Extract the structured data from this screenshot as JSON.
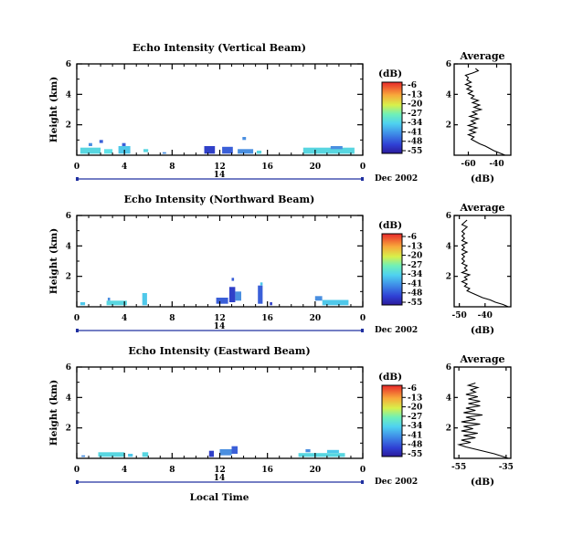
{
  "chart_data": [
    {
      "type": "heatmap",
      "title": "Echo Intensity (Vertical Beam)",
      "ylabel": "Height (km)",
      "xticks": [
        "0",
        "4",
        "8",
        "12",
        "16",
        "20",
        "0"
      ],
      "yticks": [
        "2",
        "4",
        "6"
      ],
      "day_label": "14",
      "date_label": "Dec 2002",
      "colorbar": {
        "unit": "(dB)",
        "ticks": [
          "-6",
          "-13",
          "-20",
          "-27",
          "-34",
          "-41",
          "-48",
          "-55"
        ]
      },
      "xlim": [
        0,
        24
      ],
      "ylim": [
        0,
        6
      ],
      "patches": [
        {
          "x0": 0.3,
          "x1": 2.0,
          "y0": 0.1,
          "y1": 0.5,
          "c": "#58d6e0"
        },
        {
          "x0": 1.0,
          "x1": 1.3,
          "y0": 0.6,
          "y1": 0.8,
          "c": "#4a8fe0"
        },
        {
          "x0": 1.9,
          "x1": 2.2,
          "y0": 0.8,
          "y1": 1.0,
          "c": "#3a5fd8"
        },
        {
          "x0": 2.3,
          "x1": 3.0,
          "y0": 0.1,
          "y1": 0.4,
          "c": "#60e2e8"
        },
        {
          "x0": 3.5,
          "x1": 4.5,
          "y0": 0.1,
          "y1": 0.6,
          "c": "#4fc8ea"
        },
        {
          "x0": 3.8,
          "x1": 4.1,
          "y0": 0.6,
          "y1": 0.8,
          "c": "#3a5fd8"
        },
        {
          "x0": 5.6,
          "x1": 6.0,
          "y0": 0.2,
          "y1": 0.4,
          "c": "#58d6e0"
        },
        {
          "x0": 7.2,
          "x1": 7.5,
          "y0": 0.1,
          "y1": 0.2,
          "c": "#4a8fe0"
        },
        {
          "x0": 10.7,
          "x1": 11.6,
          "y0": 0.1,
          "y1": 0.6,
          "c": "#3040c8"
        },
        {
          "x0": 12.2,
          "x1": 13.1,
          "y0": 0.1,
          "y1": 0.55,
          "c": "#3a5fd8"
        },
        {
          "x0": 13.9,
          "x1": 14.2,
          "y0": 1.0,
          "y1": 1.2,
          "c": "#4a8fe0"
        },
        {
          "x0": 13.5,
          "x1": 14.8,
          "y0": 0.1,
          "y1": 0.4,
          "c": "#4a8fe0"
        },
        {
          "x0": 15.1,
          "x1": 15.5,
          "y0": 0.1,
          "y1": 0.3,
          "c": "#58d6e0"
        },
        {
          "x0": 19.0,
          "x1": 23.3,
          "y0": 0.1,
          "y1": 0.5,
          "c": "#58d6e0"
        },
        {
          "x0": 21.3,
          "x1": 22.3,
          "y0": 0.4,
          "y1": 0.6,
          "c": "#4a8fe0"
        }
      ]
    },
    {
      "type": "heatmap",
      "title": "Echo Intensity (Northward Beam)",
      "ylabel": "Height (km)",
      "xticks": [
        "0",
        "4",
        "8",
        "12",
        "16",
        "20",
        "0"
      ],
      "yticks": [
        "2",
        "4",
        "6"
      ],
      "day_label": "14",
      "date_label": "Dec 2002",
      "colorbar": {
        "unit": "(dB)",
        "ticks": [
          "-6",
          "-13",
          "-20",
          "-27",
          "-34",
          "-41",
          "-48",
          "-55"
        ]
      },
      "xlim": [
        0,
        24
      ],
      "ylim": [
        0,
        6
      ],
      "patches": [
        {
          "x0": 0.3,
          "x1": 0.7,
          "y0": 0.1,
          "y1": 0.3,
          "c": "#4fc8ea"
        },
        {
          "x0": 2.5,
          "x1": 4.2,
          "y0": 0.1,
          "y1": 0.4,
          "c": "#58d6e0"
        },
        {
          "x0": 2.6,
          "x1": 2.8,
          "y0": 0.4,
          "y1": 0.6,
          "c": "#4a8fe0"
        },
        {
          "x0": 5.5,
          "x1": 5.9,
          "y0": 0.1,
          "y1": 0.9,
          "c": "#4fc8ea"
        },
        {
          "x0": 11.7,
          "x1": 12.7,
          "y0": 0.2,
          "y1": 0.6,
          "c": "#3a5fd8"
        },
        {
          "x0": 12.8,
          "x1": 13.3,
          "y0": 0.3,
          "y1": 1.3,
          "c": "#3040c8"
        },
        {
          "x0": 13.3,
          "x1": 13.8,
          "y0": 0.4,
          "y1": 1.0,
          "c": "#4a8fe0"
        },
        {
          "x0": 13.0,
          "x1": 13.2,
          "y0": 1.7,
          "y1": 1.9,
          "c": "#3a5fd8"
        },
        {
          "x0": 15.2,
          "x1": 15.6,
          "y0": 0.2,
          "y1": 1.4,
          "c": "#3a5fd8"
        },
        {
          "x0": 15.4,
          "x1": 15.6,
          "y0": 1.4,
          "y1": 1.6,
          "c": "#4fc8ea"
        },
        {
          "x0": 16.2,
          "x1": 16.4,
          "y0": 0.1,
          "y1": 0.3,
          "c": "#3040c8"
        },
        {
          "x0": 20.0,
          "x1": 20.6,
          "y0": 0.4,
          "y1": 0.7,
          "c": "#4a8fe0"
        },
        {
          "x0": 20.6,
          "x1": 22.8,
          "y0": 0.1,
          "y1": 0.45,
          "c": "#4fc8ea"
        }
      ]
    },
    {
      "type": "heatmap",
      "title": "Echo Intensity (Eastward Beam)",
      "ylabel": "Height (km)",
      "xlabel": "Local Time",
      "xticks": [
        "0",
        "4",
        "8",
        "12",
        "16",
        "20",
        "0"
      ],
      "yticks": [
        "2",
        "4",
        "6"
      ],
      "day_label": "14",
      "date_label": "Dec 2002",
      "colorbar": {
        "unit": "(dB)",
        "ticks": [
          "-6",
          "-13",
          "-20",
          "-27",
          "-34",
          "-41",
          "-48",
          "-55"
        ]
      },
      "xlim": [
        0,
        24
      ],
      "ylim": [
        0,
        6
      ],
      "patches": [
        {
          "x0": 0.4,
          "x1": 0.7,
          "y0": 0.1,
          "y1": 0.2,
          "c": "#4a8fe0"
        },
        {
          "x0": 1.8,
          "x1": 4.0,
          "y0": 0.1,
          "y1": 0.4,
          "c": "#58d6e0"
        },
        {
          "x0": 4.3,
          "x1": 4.7,
          "y0": 0.1,
          "y1": 0.3,
          "c": "#4fc8ea"
        },
        {
          "x0": 5.5,
          "x1": 6.0,
          "y0": 0.1,
          "y1": 0.4,
          "c": "#58d6e0"
        },
        {
          "x0": 11.1,
          "x1": 11.5,
          "y0": 0.1,
          "y1": 0.5,
          "c": "#3040c8"
        },
        {
          "x0": 12.0,
          "x1": 13.0,
          "y0": 0.2,
          "y1": 0.6,
          "c": "#4a8fe0"
        },
        {
          "x0": 13.0,
          "x1": 13.5,
          "y0": 0.3,
          "y1": 0.8,
          "c": "#3a5fd8"
        },
        {
          "x0": 18.6,
          "x1": 22.5,
          "y0": 0.1,
          "y1": 0.35,
          "c": "#58d6e0"
        },
        {
          "x0": 19.2,
          "x1": 19.6,
          "y0": 0.4,
          "y1": 0.6,
          "c": "#4a8fe0"
        },
        {
          "x0": 21.0,
          "x1": 22.0,
          "y0": 0.35,
          "y1": 0.55,
          "c": "#4fc8ea"
        }
      ]
    },
    {
      "type": "line",
      "title": "Average",
      "xlabel": "(dB)",
      "xticks": [
        -60,
        -40
      ],
      "yticks": [
        "2",
        "4",
        "6"
      ],
      "xlim": [
        -70,
        -30
      ],
      "ylim": [
        0,
        6
      ],
      "profile": [
        [
          -34,
          0.0
        ],
        [
          -38,
          0.15
        ],
        [
          -42,
          0.3
        ],
        [
          -45,
          0.45
        ],
        [
          -48,
          0.6
        ],
        [
          -52,
          0.75
        ],
        [
          -55,
          0.9
        ],
        [
          -58,
          1.05
        ],
        [
          -56,
          1.2
        ],
        [
          -60,
          1.35
        ],
        [
          -55,
          1.5
        ],
        [
          -59,
          1.65
        ],
        [
          -54,
          1.8
        ],
        [
          -60,
          1.95
        ],
        [
          -55,
          2.1
        ],
        [
          -58,
          2.25
        ],
        [
          -53,
          2.4
        ],
        [
          -59,
          2.55
        ],
        [
          -54,
          2.7
        ],
        [
          -57,
          2.85
        ],
        [
          -51,
          3.0
        ],
        [
          -56,
          3.15
        ],
        [
          -52,
          3.3
        ],
        [
          -57,
          3.45
        ],
        [
          -53,
          3.6
        ],
        [
          -58,
          3.75
        ],
        [
          -56,
          3.9
        ],
        [
          -60,
          4.05
        ],
        [
          -57,
          4.2
        ],
        [
          -61,
          4.35
        ],
        [
          -58,
          4.5
        ],
        [
          -62,
          4.65
        ],
        [
          -58,
          4.8
        ],
        [
          -61,
          4.95
        ],
        [
          -60,
          5.1
        ],
        [
          -62,
          5.25
        ],
        [
          -57,
          5.4
        ],
        [
          -53,
          5.55
        ],
        [
          -55,
          5.7
        ]
      ]
    },
    {
      "type": "line",
      "title": "Average",
      "xlabel": "(dB)",
      "xticks": [
        -50,
        -40
      ],
      "yticks": [
        "2",
        "4",
        "6"
      ],
      "xlim": [
        -52,
        -30
      ],
      "ylim": [
        0,
        6
      ],
      "profile": [
        [
          -31,
          0.0
        ],
        [
          -33,
          0.15
        ],
        [
          -36,
          0.3
        ],
        [
          -38,
          0.45
        ],
        [
          -41,
          0.6
        ],
        [
          -43,
          0.75
        ],
        [
          -45,
          0.9
        ],
        [
          -47,
          1.05
        ],
        [
          -46,
          1.2
        ],
        [
          -48,
          1.35
        ],
        [
          -47,
          1.5
        ],
        [
          -49,
          1.65
        ],
        [
          -47,
          1.8
        ],
        [
          -48,
          1.95
        ],
        [
          -46,
          2.1
        ],
        [
          -49,
          2.25
        ],
        [
          -47,
          2.4
        ],
        [
          -48,
          2.55
        ],
        [
          -47,
          2.7
        ],
        [
          -49,
          2.85
        ],
        [
          -48,
          3.0
        ],
        [
          -49,
          3.15
        ],
        [
          -48,
          3.3
        ],
        [
          -49,
          3.45
        ],
        [
          -47,
          3.6
        ],
        [
          -49,
          3.75
        ],
        [
          -48,
          3.9
        ],
        [
          -49,
          4.05
        ],
        [
          -47,
          4.2
        ],
        [
          -49,
          4.35
        ],
        [
          -48,
          4.5
        ],
        [
          -49,
          4.65
        ],
        [
          -48,
          4.8
        ],
        [
          -49,
          4.95
        ],
        [
          -48,
          5.1
        ],
        [
          -47,
          5.25
        ],
        [
          -49,
          5.4
        ],
        [
          -48,
          5.55
        ],
        [
          -47,
          5.7
        ]
      ]
    },
    {
      "type": "line",
      "title": "Average",
      "xlabel": "(dB)",
      "xticks": [
        -55,
        -35
      ],
      "yticks": [
        "2",
        "4",
        "6"
      ],
      "xlim": [
        -57,
        -33
      ],
      "ylim": [
        0,
        6
      ],
      "profile": [
        [
          -34,
          0.0
        ],
        [
          -37,
          0.15
        ],
        [
          -40,
          0.3
        ],
        [
          -44,
          0.45
        ],
        [
          -48,
          0.6
        ],
        [
          -52,
          0.75
        ],
        [
          -55,
          0.9
        ],
        [
          -50,
          1.05
        ],
        [
          -54,
          1.2
        ],
        [
          -48,
          1.35
        ],
        [
          -53,
          1.5
        ],
        [
          -47,
          1.65
        ],
        [
          -54,
          1.8
        ],
        [
          -49,
          1.95
        ],
        [
          -53,
          2.1
        ],
        [
          -46,
          2.25
        ],
        [
          -54,
          2.4
        ],
        [
          -48,
          2.55
        ],
        [
          -52,
          2.7
        ],
        [
          -45,
          2.85
        ],
        [
          -53,
          3.0
        ],
        [
          -48,
          3.15
        ],
        [
          -52,
          3.3
        ],
        [
          -46,
          3.45
        ],
        [
          -51,
          3.6
        ],
        [
          -46,
          3.75
        ],
        [
          -51,
          3.9
        ],
        [
          -47,
          4.05
        ],
        [
          -52,
          4.2
        ],
        [
          -48,
          4.35
        ],
        [
          -50,
          4.5
        ],
        [
          -47,
          4.65
        ],
        [
          -51,
          4.8
        ],
        [
          -48,
          4.95
        ]
      ]
    }
  ]
}
